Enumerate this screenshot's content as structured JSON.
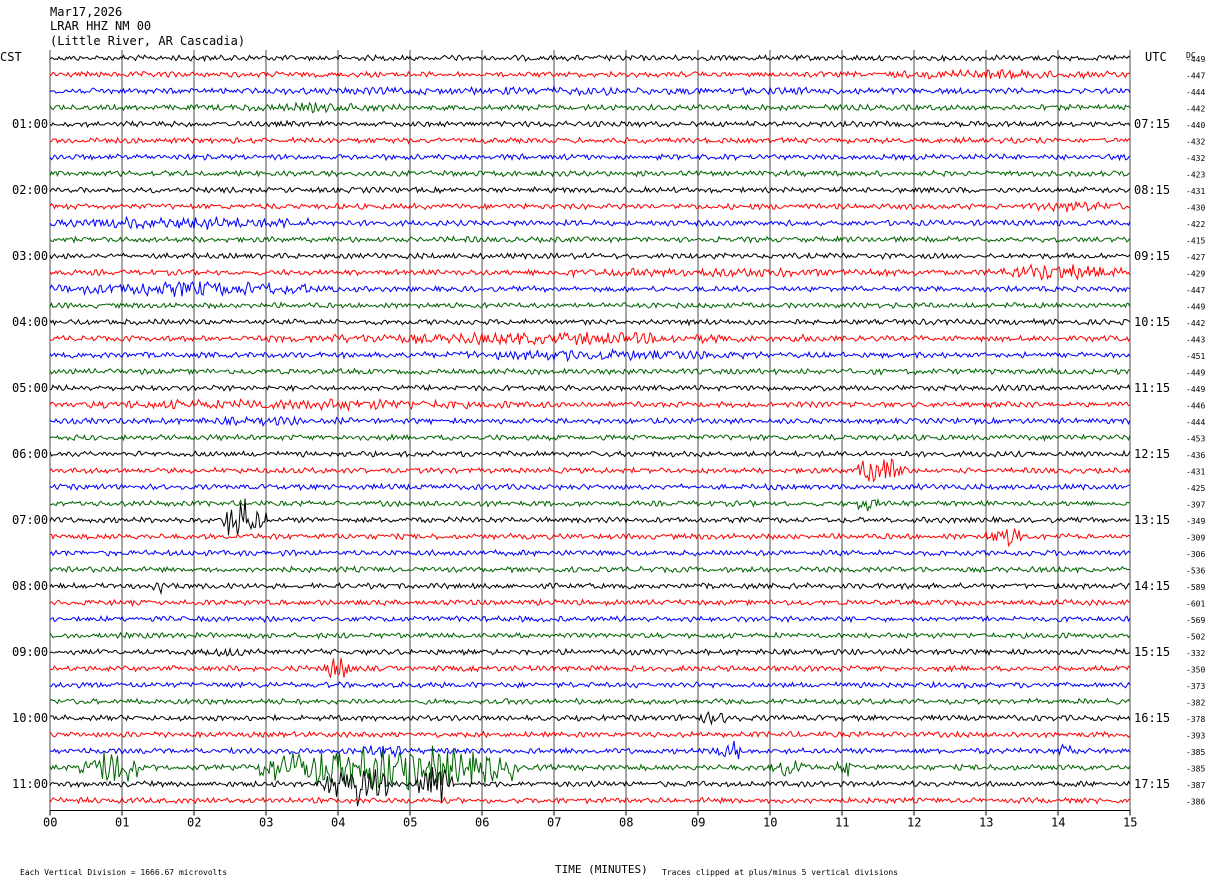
{
  "header": {
    "date": "Mar17,2026",
    "station": "LRAR HHZ NM 00",
    "location": "(Little River, AR Cascadia)"
  },
  "left_timezone": "CST",
  "right_timezone": "UTC",
  "dc_label": "DC",
  "footer": {
    "scale_note": "Each Vertical Division = 1666.67 microvolts",
    "xlabel": "TIME (MINUTES)",
    "clip_note": "Traces clipped at plus/minus 5 vertical divisions"
  },
  "chart_data": {
    "type": "line",
    "title": "",
    "xlabel": "TIME (MINUTES)",
    "xlim": [
      0,
      15
    ],
    "x_ticks": [
      "00",
      "01",
      "02",
      "03",
      "04",
      "05",
      "06",
      "07",
      "08",
      "09",
      "10",
      "11",
      "12",
      "13",
      "14",
      "15"
    ],
    "trace_colors": [
      "#000000",
      "#ff0000",
      "#0000ff",
      "#006400"
    ],
    "left_hour_labels": [
      "01:00",
      "02:00",
      "03:00",
      "04:00",
      "05:00",
      "06:00",
      "07:00",
      "08:00",
      "09:00",
      "10:00",
      "11:00"
    ],
    "right_hour_labels": [
      "07:15",
      "08:15",
      "09:15",
      "10:15",
      "11:15",
      "12:15",
      "13:15",
      "14:15",
      "15:15",
      "16:15",
      "17:15"
    ],
    "dc_values": [
      "-449",
      "-447",
      "-444",
      "-442",
      "-440",
      "-432",
      "-432",
      "-423",
      "-431",
      "-430",
      "-422",
      "-415",
      "-427",
      "-429",
      "-447",
      "-449",
      "-442",
      "-443",
      "-451",
      "-449",
      "-449",
      "-446",
      "-444",
      "-453",
      "-436",
      "-431",
      "-425",
      "-397",
      "-349",
      "-309",
      "-306",
      "-536",
      "-589",
      "-601",
      "-569",
      "-502",
      "-332",
      "-350",
      "-373",
      "-382",
      "-378",
      "-393",
      "-385",
      "-385",
      "-387",
      "-386"
    ],
    "noise_level": [
      1,
      1,
      1,
      1,
      1,
      1,
      1,
      1,
      1,
      1,
      1,
      1,
      1,
      1,
      1,
      1,
      1,
      1,
      1,
      1,
      1,
      1,
      1,
      1,
      1,
      1,
      1,
      1,
      1,
      1,
      1,
      1,
      1,
      1,
      1,
      1,
      1,
      1,
      1,
      1,
      1,
      1,
      1,
      1,
      1,
      1
    ],
    "bursts": [
      {
        "row": 1,
        "start": 11.3,
        "end": 15,
        "amp": 2
      },
      {
        "row": 2,
        "start": 0,
        "end": 15,
        "amp": 1.6
      },
      {
        "row": 3,
        "start": 2.0,
        "end": 5.3,
        "amp": 1.8
      },
      {
        "row": 9,
        "start": 13.6,
        "end": 15,
        "amp": 2.2
      },
      {
        "row": 10,
        "start": 0,
        "end": 4.0,
        "amp": 2.6
      },
      {
        "row": 13,
        "start": 5.5,
        "end": 13.0,
        "amp": 1.8
      },
      {
        "row": 13,
        "start": 13.0,
        "end": 15,
        "amp": 3.2
      },
      {
        "row": 14,
        "start": 0,
        "end": 4.0,
        "amp": 3.0
      },
      {
        "row": 17,
        "start": 3.0,
        "end": 11.0,
        "amp": 2.4
      },
      {
        "row": 18,
        "start": 5.0,
        "end": 10.0,
        "amp": 2.2
      },
      {
        "row": 21,
        "start": 0,
        "end": 7.0,
        "amp": 2.2
      },
      {
        "row": 22,
        "start": 1.0,
        "end": 5.0,
        "amp": 1.6
      },
      {
        "row": 25,
        "start": 11.2,
        "end": 11.9,
        "amp": 6
      },
      {
        "row": 27,
        "start": 11.2,
        "end": 11.5,
        "amp": 4
      },
      {
        "row": 28,
        "start": 2.4,
        "end": 3.0,
        "amp": 9
      },
      {
        "row": 29,
        "start": 13.0,
        "end": 13.6,
        "amp": 4
      },
      {
        "row": 32,
        "start": 1.4,
        "end": 1.6,
        "amp": 4
      },
      {
        "row": 36,
        "start": 1.8,
        "end": 3.2,
        "amp": 1.8
      },
      {
        "row": 37,
        "start": 3.8,
        "end": 4.2,
        "amp": 5
      },
      {
        "row": 40,
        "start": 8.7,
        "end": 9.7,
        "amp": 2.2
      },
      {
        "row": 42,
        "start": 4.3,
        "end": 4.9,
        "amp": 3
      },
      {
        "row": 42,
        "start": 9.2,
        "end": 9.6,
        "amp": 6
      },
      {
        "row": 42,
        "start": 13.9,
        "end": 14.3,
        "amp": 3
      },
      {
        "row": 43,
        "start": 0.4,
        "end": 1.3,
        "amp": 7
      },
      {
        "row": 43,
        "start": 2.9,
        "end": 6.5,
        "amp": 9
      },
      {
        "row": 43,
        "start": 10.0,
        "end": 10.5,
        "amp": 4
      },
      {
        "row": 43,
        "start": 10.9,
        "end": 11.2,
        "amp": 4
      },
      {
        "row": 44,
        "start": 3.8,
        "end": 4.7,
        "amp": 8
      },
      {
        "row": 44,
        "start": 5.1,
        "end": 5.6,
        "amp": 9
      },
      {
        "row": 47,
        "start": 10.6,
        "end": 11.0,
        "amp": 5
      }
    ]
  }
}
